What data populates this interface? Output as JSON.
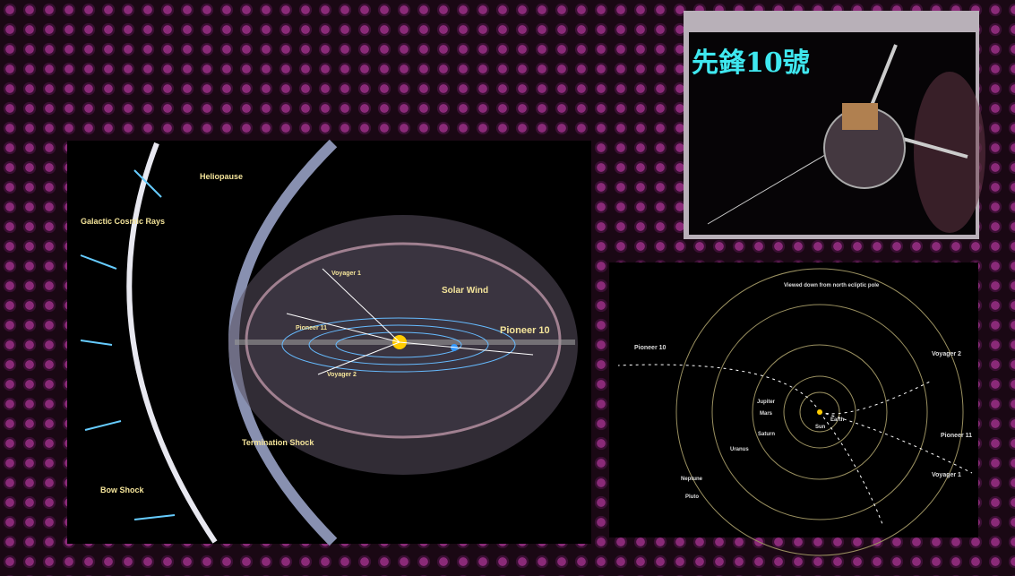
{
  "slide": {
    "photo": {
      "title": "先鋒10號"
    },
    "heliosphere": {
      "labels": [
        "Heliopause",
        "Galactic Cosmic Rays",
        "Solar Wind",
        "Voyager 1",
        "Pioneer 11",
        "Pioneer 10",
        "Voyager 2",
        "Termination Shock",
        "Bow Shock"
      ]
    },
    "trajectories": {
      "caption": "Viewed down from north ecliptic pole",
      "labels": [
        "Pioneer 10",
        "Voyager 2",
        "Pioneer 11",
        "Voyager 1",
        "Jupiter",
        "Mars",
        "Saturn",
        "Uranus",
        "Neptune",
        "Pluto",
        "Sun",
        "Earth"
      ]
    }
  }
}
